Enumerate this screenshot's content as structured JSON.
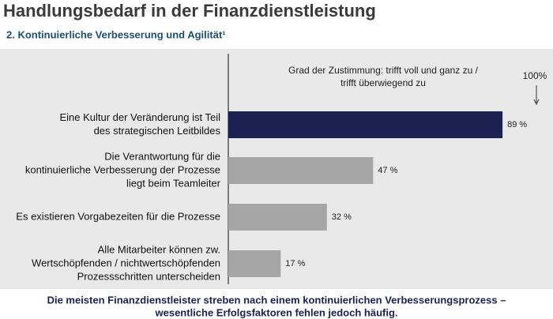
{
  "chart_data": {
    "type": "hbar",
    "title": "Handlungsbedarf in der Finanzdienstleistung",
    "subtitle": "2. Kontinuierliche Verbesserung und Agilität¹",
    "annotation": [
      "Grad der Zustimmung: trifft voll und ganz zu /",
      "trifft überwiegend zu"
    ],
    "reference": {
      "value": 100,
      "label": "100%"
    },
    "categories": [
      [
        "Eine Kultur der Veränderung ist Teil",
        "des strategischen Leitbildes"
      ],
      [
        "Die Verantwortung für die",
        "kontinuierliche Verbesserung der Prozesse",
        "liegt beim Teamleiter"
      ],
      [
        "Es existieren Vorgabezeiten für die Prozesse"
      ],
      [
        "Alle Mitarbeiter können zw.",
        "Wertschöpfenden / nichtwertschöpfenden",
        "Prozessschritten unterscheiden"
      ]
    ],
    "values": [
      89,
      47,
      32,
      17
    ],
    "value_labels": [
      "89 %",
      "47 %",
      "32 %",
      "17 %"
    ],
    "colors": [
      "#1b2251",
      "#a6a6a6",
      "#a6a6a6",
      "#a6a6a6"
    ],
    "xlim": [
      0,
      100
    ],
    "footer": [
      "Die meisten Finanzdienstleister streben nach einem kontinuierlichen Verbesserungsprozess –",
      "wesentliche Erfolgsfaktoren fehlen jedoch häufig."
    ]
  }
}
